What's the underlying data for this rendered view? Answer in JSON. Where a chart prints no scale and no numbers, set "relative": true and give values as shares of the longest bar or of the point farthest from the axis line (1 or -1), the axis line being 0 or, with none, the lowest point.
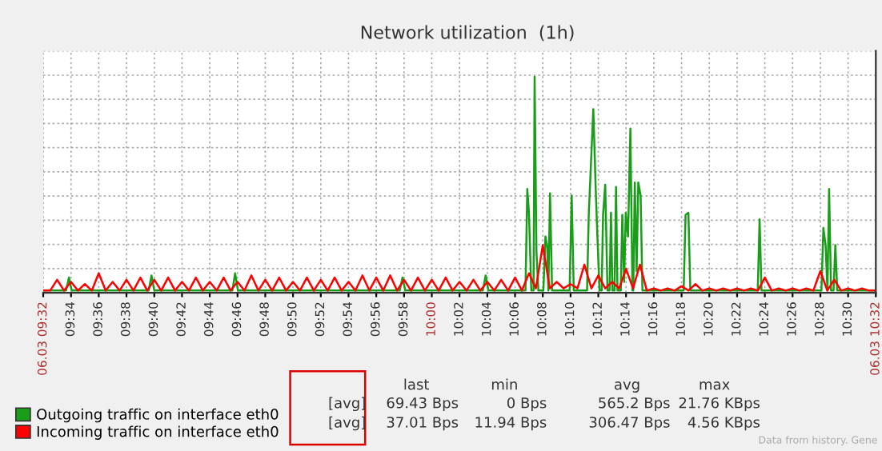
{
  "chart_data": {
    "type": "line",
    "title": "Network utilization  (1h)",
    "relative": true,
    "grid": true,
    "tick_labels": "x",
    "legend": "bottom left",
    "xlim": [
      9.5333,
      10.5333
    ],
    "xticks": [
      {
        "value": 9.5333,
        "label": "06.03 09:32"
      },
      {
        "value": 9.5667,
        "label": "09:34"
      },
      {
        "value": 9.6,
        "label": "09:36"
      },
      {
        "value": 9.6333,
        "label": "09:38"
      },
      {
        "value": 9.6667,
        "label": "09:40"
      },
      {
        "value": 9.7,
        "label": "09:42"
      },
      {
        "value": 9.7333,
        "label": "09:44"
      },
      {
        "value": 9.7667,
        "label": "09:46"
      },
      {
        "value": 9.8,
        "label": "09:48"
      },
      {
        "value": 9.8333,
        "label": "09:50"
      },
      {
        "value": 9.8667,
        "label": "09:52"
      },
      {
        "value": 9.9,
        "label": "09:54"
      },
      {
        "value": 9.9333,
        "label": "09:56"
      },
      {
        "value": 9.9667,
        "label": "09:58"
      },
      {
        "value": 10,
        "label": "10:00"
      },
      {
        "value": 10.0333,
        "label": "10:02"
      },
      {
        "value": 10.0667,
        "label": "10:04"
      },
      {
        "value": 10.1,
        "label": "10:06"
      },
      {
        "value": 10.1333,
        "label": "10:08"
      },
      {
        "value": 10.1667,
        "label": "10:10"
      },
      {
        "value": 10.2,
        "label": "10:12"
      },
      {
        "value": 10.2333,
        "label": "10:14"
      },
      {
        "value": 10.2667,
        "label": "10:16"
      },
      {
        "value": 10.3,
        "label": "10:18"
      },
      {
        "value": 10.3333,
        "label": "10:20"
      },
      {
        "value": 10.3667,
        "label": "10:22"
      },
      {
        "value": 10.4,
        "label": "10:24"
      },
      {
        "value": 10.4333,
        "label": "10:26"
      },
      {
        "value": 10.4667,
        "label": "10:28"
      },
      {
        "value": 10.5,
        "label": "10:30"
      },
      {
        "value": 10.5333,
        "label": "06.03 10:32"
      }
    ],
    "series": [
      {
        "name": "Outgoing traffic on interface eth0",
        "color": "#1a9e1a",
        "x": [
          9.5333,
          9.5608,
          9.5642,
          9.5675,
          9.66,
          9.6633,
          9.6667,
          9.7605,
          9.7638,
          9.7672,
          9.9615,
          9.9648,
          9.9682,
          10.0613,
          10.0647,
          10.068,
          10.1125,
          10.1147,
          10.1167,
          10.1195,
          10.1222,
          10.1235,
          10.1257,
          10.128,
          10.134,
          10.1365,
          10.1387,
          10.14,
          10.142,
          10.1445,
          10.1655,
          10.168,
          10.1705,
          10.1865,
          10.1885,
          10.1912,
          10.194,
          10.1967,
          10.1988,
          10.2015,
          10.204,
          10.2057,
          10.2083,
          10.211,
          10.2135,
          10.2152,
          10.217,
          10.2195,
          10.2213,
          10.223,
          10.227,
          10.2288,
          10.231,
          10.233,
          10.2357,
          10.2385,
          10.241,
          10.242,
          10.2438,
          10.246,
          10.248,
          10.2508,
          10.253,
          10.3025,
          10.3048,
          10.3082,
          10.3105,
          10.3915,
          10.3937,
          10.396,
          10.468,
          10.4703,
          10.473,
          10.4752,
          10.4772,
          10.4795,
          10.4825,
          10.4847,
          10.487,
          10.5333
        ],
        "values": [
          0.01,
          0.01,
          0.07,
          0.01,
          0.01,
          0.08,
          0.01,
          0.01,
          0.09,
          0.01,
          0.01,
          0.07,
          0.01,
          0.01,
          0.08,
          0.01,
          0.01,
          0.48,
          0.37,
          0.01,
          0.01,
          1.0,
          0.19,
          0.01,
          0.01,
          0.26,
          0.21,
          0.01,
          0.46,
          0.01,
          0.01,
          0.45,
          0.01,
          0.01,
          0.36,
          0.6,
          0.85,
          0.5,
          0.27,
          0.01,
          0.01,
          0.36,
          0.5,
          0.01,
          0.01,
          0.37,
          0.01,
          0.01,
          0.49,
          0.01,
          0.01,
          0.36,
          0.05,
          0.37,
          0.26,
          0.76,
          0.01,
          0.01,
          0.51,
          0.1,
          0.51,
          0.45,
          0.01,
          0.01,
          0.36,
          0.37,
          0.01,
          0.01,
          0.34,
          0.01,
          0.01,
          0.3,
          0.22,
          0.01,
          0.48,
          0.01,
          0.01,
          0.22,
          0.01,
          0.01
        ]
      },
      {
        "name": "Incoming traffic on interface eth0",
        "color": "#ff0000",
        "x": [
          9.5333,
          9.5417,
          9.55,
          9.5583,
          9.5667,
          9.575,
          9.5833,
          9.5917,
          9.6,
          9.6083,
          9.6167,
          9.625,
          9.6333,
          9.6417,
          9.65,
          9.6583,
          9.6667,
          9.675,
          9.6833,
          9.6917,
          9.7,
          9.7083,
          9.7167,
          9.725,
          9.7333,
          9.7417,
          9.75,
          9.7583,
          9.7667,
          9.775,
          9.7833,
          9.7917,
          9.8,
          9.8083,
          9.8167,
          9.825,
          9.8333,
          9.8417,
          9.85,
          9.8583,
          9.8667,
          9.875,
          9.8833,
          9.8917,
          9.9,
          9.9083,
          9.9167,
          9.925,
          9.9333,
          9.9417,
          9.95,
          9.9583,
          9.9667,
          9.975,
          9.9833,
          9.9917,
          10.0,
          10.0083,
          10.0167,
          10.025,
          10.0333,
          10.0417,
          10.05,
          10.0583,
          10.0667,
          10.075,
          10.0833,
          10.0917,
          10.1,
          10.1083,
          10.1167,
          10.125,
          10.1333,
          10.1417,
          10.15,
          10.1583,
          10.1667,
          10.175,
          10.1833,
          10.1917,
          10.2,
          10.2083,
          10.2167,
          10.225,
          10.2333,
          10.2417,
          10.25,
          10.2583,
          10.2667,
          10.275,
          10.2833,
          10.2917,
          10.3,
          10.3083,
          10.3167,
          10.325,
          10.3333,
          10.3417,
          10.35,
          10.3583,
          10.3667,
          10.375,
          10.3833,
          10.3917,
          10.4,
          10.4083,
          10.4167,
          10.425,
          10.4333,
          10.4417,
          10.45,
          10.4583,
          10.4667,
          10.475,
          10.4833,
          10.4917,
          10.5,
          10.5083,
          10.5167,
          10.525,
          10.5333
        ],
        "values": [
          0.01,
          0.01,
          0.06,
          0.01,
          0.05,
          0.01,
          0.04,
          0.01,
          0.09,
          0.01,
          0.05,
          0.01,
          0.06,
          0.01,
          0.07,
          0.01,
          0.06,
          0.01,
          0.07,
          0.01,
          0.05,
          0.01,
          0.07,
          0.01,
          0.05,
          0.01,
          0.07,
          0.01,
          0.05,
          0.01,
          0.08,
          0.01,
          0.06,
          0.01,
          0.07,
          0.01,
          0.05,
          0.01,
          0.07,
          0.01,
          0.06,
          0.01,
          0.07,
          0.01,
          0.05,
          0.01,
          0.08,
          0.01,
          0.07,
          0.01,
          0.08,
          0.01,
          0.06,
          0.01,
          0.07,
          0.01,
          0.06,
          0.01,
          0.07,
          0.01,
          0.05,
          0.01,
          0.06,
          0.01,
          0.05,
          0.01,
          0.06,
          0.01,
          0.07,
          0.01,
          0.09,
          0.02,
          0.22,
          0.02,
          0.05,
          0.02,
          0.04,
          0.02,
          0.13,
          0.02,
          0.08,
          0.02,
          0.05,
          0.02,
          0.11,
          0.02,
          0.13,
          0.01,
          0.02,
          0.01,
          0.02,
          0.01,
          0.03,
          0.01,
          0.04,
          0.01,
          0.02,
          0.01,
          0.02,
          0.01,
          0.02,
          0.01,
          0.02,
          0.01,
          0.07,
          0.01,
          0.02,
          0.01,
          0.02,
          0.01,
          0.02,
          0.01,
          0.1,
          0.01,
          0.06,
          0.01,
          0.02,
          0.01,
          0.02,
          0.01,
          0.01
        ]
      }
    ],
    "annotations": [
      "last",
      "min",
      "avg",
      "max",
      "[avg]",
      "69.43 Bps",
      "0 Bps",
      "565.2 Bps",
      "21.76 KBps",
      "[avg]",
      "37.01 Bps",
      "11.94 Bps",
      "306.47 Bps",
      "4.56 KBps",
      "Data from history. Gene"
    ]
  }
}
